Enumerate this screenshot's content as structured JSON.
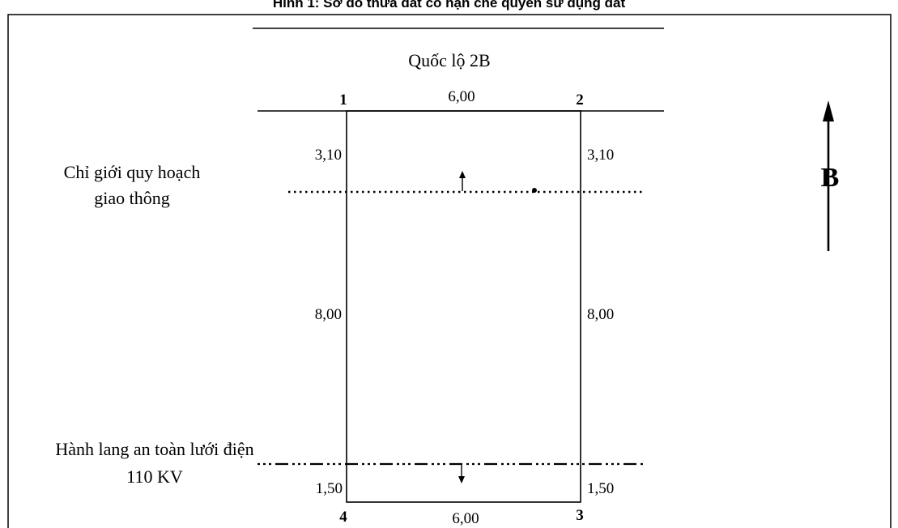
{
  "caption": "Hình 1: Sơ đồ thửa đất có hạn chế quyền sử dụng đất",
  "road_label": "Quốc lộ 2B",
  "corners": {
    "c1": "1",
    "c2": "2",
    "c3": "3",
    "c4": "4"
  },
  "dimensions": {
    "top": "6,00",
    "bottom": "6,00",
    "left_upper": "3,10",
    "right_upper": "3,10",
    "left_middle": "8,00",
    "right_middle": "8,00",
    "left_lower": "1,50",
    "right_lower": "1,50"
  },
  "traffic_line_label": [
    "Chỉ giới quy hoạch",
    "giao thông"
  ],
  "power_line_label": [
    "Hành lang an toàn lưới điện",
    "110 KV"
  ],
  "north_label": "B"
}
